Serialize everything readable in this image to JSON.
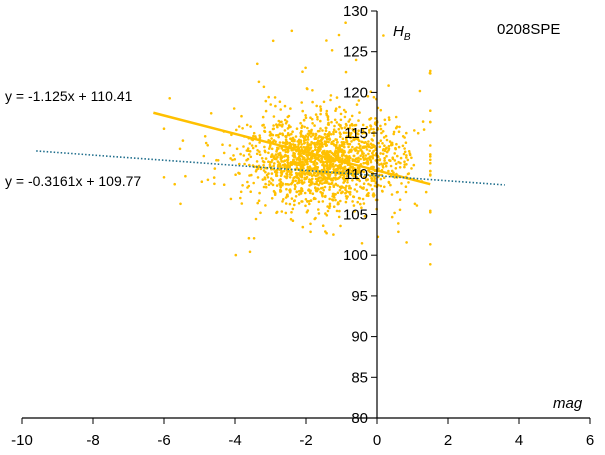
{
  "chart_data": {
    "type": "scatter",
    "title": "",
    "label_id": "0208SPE",
    "xlabel": "mag",
    "ylabel": "H",
    "ylabel_sub": "B",
    "xlim": [
      -10,
      6
    ],
    "ylim": [
      80,
      130
    ],
    "xticks": [
      -10,
      -8,
      -6,
      -4,
      -2,
      0,
      2,
      4,
      6
    ],
    "yticks": [
      80,
      85,
      90,
      95,
      100,
      105,
      110,
      115,
      120,
      125,
      130
    ],
    "grid": false,
    "colors": {
      "points": "#FFC000",
      "trend_solid": "#FFC000",
      "trend_dotted": "#1F6E8C",
      "axis": "#000000"
    },
    "scatter": {
      "count": 1800,
      "center": [
        -1.5,
        111.5
      ],
      "spread_x": 1.1,
      "spread_y": 2.6,
      "x_range": [
        -6,
        1.5
      ],
      "y_range": [
        98,
        129
      ]
    },
    "trendlines": [
      {
        "style": "solid",
        "equation": "y = -1.125x + 110.41",
        "slope": -1.125,
        "intercept": 110.41,
        "x_range": [
          -6.3,
          1.5
        ]
      },
      {
        "style": "dotted",
        "equation": "y = -0.3161x + 109.77",
        "slope": -0.3161,
        "intercept": 109.77,
        "x_range": [
          -9.6,
          3.6
        ]
      }
    ]
  }
}
